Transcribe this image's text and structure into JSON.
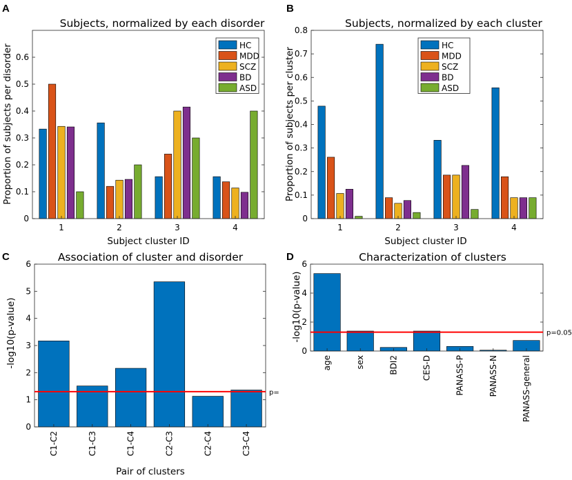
{
  "colors": {
    "HC": "#0072BD",
    "MDD": "#D95319",
    "SCZ": "#EDB120",
    "BD": "#7E2F8E",
    "ASD": "#77AC30",
    "bar": "#0072BD",
    "threshold": "#FF0000"
  },
  "chart_data": [
    {
      "panel": "A",
      "type": "bar",
      "title": "Subjects, normalized by each disorder",
      "xlabel": "Subject cluster ID",
      "ylabel": "Proportion of subjects per disorder",
      "categories": [
        "1",
        "2",
        "3",
        "4"
      ],
      "ylim": [
        0,
        0.7
      ],
      "yticks": [
        "0",
        "0.1",
        "0.2",
        "0.3",
        "0.4",
        "0.5",
        "0.6"
      ],
      "series": [
        {
          "name": "HC",
          "values": [
            0.333,
            0.356,
            0.156,
            0.156
          ]
        },
        {
          "name": "MDD",
          "values": [
            0.5,
            0.12,
            0.24,
            0.137
          ]
        },
        {
          "name": "SCZ",
          "values": [
            0.343,
            0.143,
            0.4,
            0.114
          ]
        },
        {
          "name": "BD",
          "values": [
            0.341,
            0.146,
            0.415,
            0.098
          ]
        },
        {
          "name": "ASD",
          "values": [
            0.1,
            0.2,
            0.3,
            0.4
          ]
        }
      ],
      "legend": [
        "HC",
        "MDD",
        "SCZ",
        "BD",
        "ASD"
      ]
    },
    {
      "panel": "B",
      "type": "bar",
      "title": "Subjects, normalized by each cluster",
      "xlabel": "Subject cluster ID",
      "ylabel": "Proportion of subjects per cluster",
      "categories": [
        "1",
        "2",
        "3",
        "4"
      ],
      "ylim": [
        0,
        0.8
      ],
      "yticks": [
        "0",
        "0.1",
        "0.2",
        "0.3",
        "0.4",
        "0.5",
        "0.6",
        "0.7",
        "0.8"
      ],
      "series": [
        {
          "name": "HC",
          "values": [
            0.478,
            0.741,
            0.333,
            0.556
          ]
        },
        {
          "name": "MDD",
          "values": [
            0.261,
            0.089,
            0.185,
            0.178
          ]
        },
        {
          "name": "SCZ",
          "values": [
            0.107,
            0.065,
            0.185,
            0.089
          ]
        },
        {
          "name": "BD",
          "values": [
            0.125,
            0.077,
            0.226,
            0.089
          ]
        },
        {
          "name": "ASD",
          "values": [
            0.01,
            0.026,
            0.039,
            0.089
          ]
        }
      ],
      "legend": [
        "HC",
        "MDD",
        "SCZ",
        "BD",
        "ASD"
      ]
    },
    {
      "panel": "C",
      "type": "bar",
      "title": "Association of cluster and disorder",
      "xlabel": "Pair of clusters",
      "ylabel": "-log10(p-value)",
      "categories": [
        "C1-C2",
        "C1-C3",
        "C1-C4",
        "C2-C3",
        "C2-C4",
        "C3-C4"
      ],
      "values": [
        3.17,
        1.51,
        2.16,
        5.35,
        1.13,
        1.36
      ],
      "ylim": [
        0,
        6
      ],
      "yticks": [
        "0",
        "1",
        "2",
        "3",
        "4",
        "5",
        "6"
      ],
      "threshold": {
        "value": 1.301,
        "label": "p="
      }
    },
    {
      "panel": "D",
      "type": "bar",
      "title": "Characterization of clusters",
      "xlabel": "",
      "ylabel": "-log10(p-value)",
      "categories": [
        "age",
        "sex",
        "BDI2",
        "CES-D",
        "PANASS-P",
        "PANASS-N",
        "PANASS-general"
      ],
      "values": [
        5.35,
        1.38,
        0.25,
        1.38,
        0.32,
        0.06,
        0.73
      ],
      "ylim": [
        0,
        6
      ],
      "yticks": [
        "0",
        "2",
        "4",
        "6"
      ],
      "threshold": {
        "value": 1.301,
        "label": "p=0.05"
      }
    }
  ]
}
